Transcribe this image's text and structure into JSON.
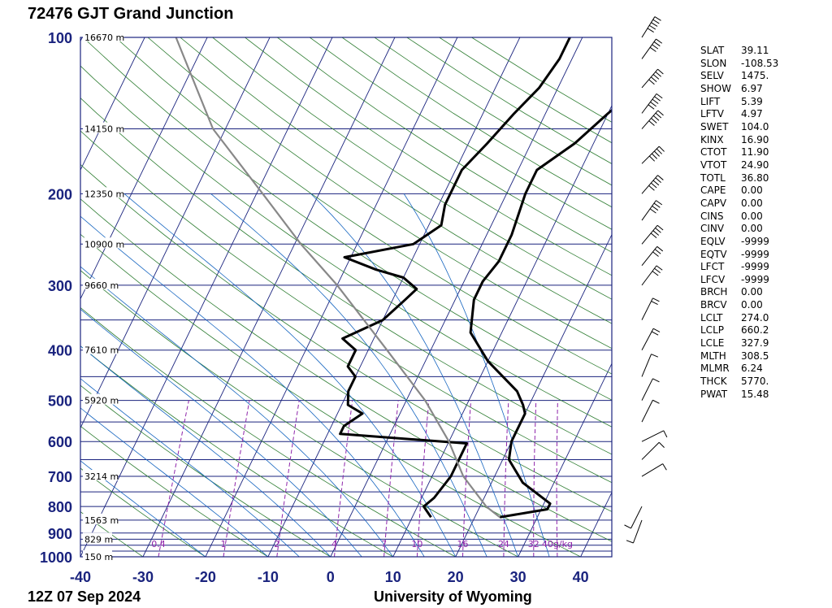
{
  "title": "72476 GJT Grand Junction",
  "footer": {
    "date": "12Z 07 Sep 2024",
    "source": "University of Wyoming"
  },
  "colors": {
    "isobar": "#1a237e",
    "skewT": "#1a237e",
    "dryAdiabat": "#2e7d32",
    "moistAdiabat": "#1565c0",
    "mixingRatio": "#8e24aa",
    "temperature": "#000000",
    "dewpoint": "#000000",
    "parcel": "#888888",
    "pressureLabel": "#1a237e"
  },
  "chart_data": {
    "type": "skew-t",
    "xlabel": "",
    "ylabel": "",
    "xlim": [
      -40,
      45
    ],
    "ylim": [
      1000,
      100
    ],
    "x_ticks": [
      "-40",
      "-30",
      "-20",
      "-10",
      "0",
      "10",
      "20",
      "30",
      "40"
    ],
    "pressure_labels": [
      {
        "p": 100,
        "label": "100"
      },
      {
        "p": 200,
        "label": "200"
      },
      {
        "p": 300,
        "label": "300"
      },
      {
        "p": 400,
        "label": "400"
      },
      {
        "p": 500,
        "label": "500"
      },
      {
        "p": 600,
        "label": "600"
      },
      {
        "p": 700,
        "label": "700"
      },
      {
        "p": 800,
        "label": "800"
      },
      {
        "p": 900,
        "label": "900"
      },
      {
        "p": 1000,
        "label": "1000"
      }
    ],
    "isobars": [
      100,
      150,
      200,
      250,
      300,
      350,
      400,
      450,
      500,
      550,
      600,
      650,
      700,
      750,
      800,
      850,
      900,
      925,
      950,
      975,
      1000
    ],
    "height_labels": [
      {
        "p": 100,
        "label": "16670 m"
      },
      {
        "p": 150,
        "label": "14150 m"
      },
      {
        "p": 200,
        "label": "12350 m"
      },
      {
        "p": 250,
        "label": "10900 m"
      },
      {
        "p": 300,
        "label": "9660 m"
      },
      {
        "p": 400,
        "label": "7610 m"
      },
      {
        "p": 500,
        "label": "5920 m"
      },
      {
        "p": 700,
        "label": "3214 m"
      },
      {
        "p": 850,
        "label": "1563 m"
      },
      {
        "p": 925,
        "label": "829 m"
      },
      {
        "p": 1000,
        "label": "150 m"
      }
    ],
    "mixing_ratio_labels": [
      "0.4",
      "1",
      "2",
      "4",
      "7",
      "10",
      "16",
      "24",
      "32",
      "40g/kg"
    ],
    "mixing_ratio_values": [
      0.4,
      1,
      2,
      4,
      7,
      10,
      16,
      24,
      32,
      40
    ],
    "series": [
      {
        "points": [
          [
            839,
            13
          ],
          [
            800,
            11
          ],
          [
            770,
            12
          ],
          [
            700,
            13
          ],
          [
            630,
            13
          ],
          [
            605,
            13
          ],
          [
            580,
            -8
          ],
          [
            560,
            -8
          ],
          [
            530,
            -6
          ],
          [
            510,
            -9
          ],
          [
            480,
            -10
          ],
          [
            450,
            -10
          ],
          [
            430,
            -12
          ],
          [
            400,
            -12
          ],
          [
            380,
            -15
          ],
          [
            350,
            -10
          ],
          [
            320,
            -8
          ],
          [
            305,
            -7
          ],
          [
            290,
            -10
          ],
          [
            280,
            -15
          ],
          [
            265,
            -21
          ],
          [
            250,
            -11
          ],
          [
            230,
            -8
          ],
          [
            210,
            -9
          ],
          [
            180,
            -9
          ],
          [
            160,
            -7
          ],
          [
            140,
            -5
          ],
          [
            125,
            -3
          ],
          [
            110,
            -2
          ],
          [
            100,
            -2
          ]
        ]
      },
      {
        "points": [
          [
            839,
            24
          ],
          [
            810,
            31
          ],
          [
            790,
            31
          ],
          [
            720,
            25
          ],
          [
            650,
            21
          ],
          [
            600,
            20
          ],
          [
            580,
            20
          ],
          [
            530,
            20
          ],
          [
            510,
            19
          ],
          [
            480,
            17
          ],
          [
            420,
            10
          ],
          [
            370,
            5
          ],
          [
            320,
            3
          ],
          [
            295,
            3
          ],
          [
            270,
            4
          ],
          [
            240,
            4
          ],
          [
            200,
            3
          ],
          [
            180,
            3
          ],
          [
            160,
            7
          ],
          [
            140,
            10
          ],
          [
            120,
            14
          ],
          [
            110,
            16
          ],
          [
            100,
            17
          ]
        ]
      },
      {
        "points": [
          [
            839,
            24
          ],
          [
            800,
            21
          ],
          [
            700,
            15
          ],
          [
            600,
            10
          ],
          [
            500,
            3
          ],
          [
            400,
            -7
          ],
          [
            300,
            -20
          ],
          [
            250,
            -29
          ],
          [
            200,
            -39
          ],
          [
            150,
            -52
          ],
          [
            100,
            -65
          ]
        ]
      }
    ],
    "wind_barbs": [
      {
        "p": 100,
        "u": -25,
        "v": -40
      },
      {
        "p": 110,
        "u": -25,
        "v": -35
      },
      {
        "p": 125,
        "u": -30,
        "v": -35
      },
      {
        "p": 140,
        "u": -30,
        "v": -40
      },
      {
        "p": 150,
        "u": -35,
        "v": -40
      },
      {
        "p": 175,
        "u": -35,
        "v": -35
      },
      {
        "p": 200,
        "u": -30,
        "v": -35
      },
      {
        "p": 225,
        "u": -25,
        "v": -35
      },
      {
        "p": 250,
        "u": -25,
        "v": -30
      },
      {
        "p": 275,
        "u": -20,
        "v": -25
      },
      {
        "p": 300,
        "u": -15,
        "v": -20
      },
      {
        "p": 350,
        "u": -10,
        "v": -20
      },
      {
        "p": 400,
        "u": -8,
        "v": -15
      },
      {
        "p": 450,
        "u": -5,
        "v": -12
      },
      {
        "p": 500,
        "u": -5,
        "v": -10
      },
      {
        "p": 550,
        "u": -5,
        "v": -10
      },
      {
        "p": 600,
        "u": -10,
        "v": -5
      },
      {
        "p": 650,
        "u": -5,
        "v": -5
      },
      {
        "p": 700,
        "u": -5,
        "v": -3
      },
      {
        "p": 800,
        "u": 5,
        "v": 10
      },
      {
        "p": 850,
        "u": 3,
        "v": 8
      }
    ]
  },
  "indices": [
    {
      "k": "SLAT",
      "v": "39.11"
    },
    {
      "k": "SLON",
      "v": "-108.53"
    },
    {
      "k": "SELV",
      "v": "1475."
    },
    {
      "k": "SHOW",
      "v": "6.97"
    },
    {
      "k": "LIFT",
      "v": "5.39"
    },
    {
      "k": "LFTV",
      "v": "4.97"
    },
    {
      "k": "SWET",
      "v": "104.0"
    },
    {
      "k": "KINX",
      "v": "16.90"
    },
    {
      "k": "CTOT",
      "v": "11.90"
    },
    {
      "k": "VTOT",
      "v": "24.90"
    },
    {
      "k": "TOTL",
      "v": "36.80"
    },
    {
      "k": "CAPE",
      "v": "0.00"
    },
    {
      "k": "CAPV",
      "v": "0.00"
    },
    {
      "k": "CINS",
      "v": "0.00"
    },
    {
      "k": "CINV",
      "v": "0.00"
    },
    {
      "k": "EQLV",
      "v": "-9999"
    },
    {
      "k": "EQTV",
      "v": "-9999"
    },
    {
      "k": "LFCT",
      "v": "-9999"
    },
    {
      "k": "LFCV",
      "v": "-9999"
    },
    {
      "k": "BRCH",
      "v": "0.00"
    },
    {
      "k": "BRCV",
      "v": "0.00"
    },
    {
      "k": "LCLT",
      "v": "274.0"
    },
    {
      "k": "LCLP",
      "v": "660.2"
    },
    {
      "k": "LCLE",
      "v": "327.9"
    },
    {
      "k": "MLTH",
      "v": "308.5"
    },
    {
      "k": "MLMR",
      "v": "6.24"
    },
    {
      "k": "THCK",
      "v": "5770."
    },
    {
      "k": "PWAT",
      "v": "15.48"
    }
  ]
}
